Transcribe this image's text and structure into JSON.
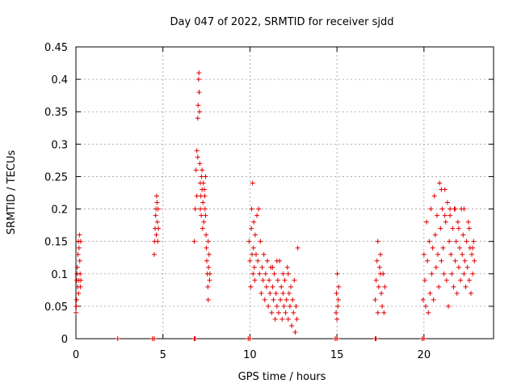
{
  "chart_data": {
    "type": "scatter",
    "title": "Day 047 of 2022, SRMTID for receiver sjdd",
    "xlabel": "GPS time / hours",
    "ylabel": "SRMTID / TECUs",
    "xlim": [
      0,
      24
    ],
    "ylim": [
      0,
      0.45
    ],
    "xticks": [
      0,
      5,
      10,
      15,
      20
    ],
    "xtick_labels": [
      "0",
      "5",
      "10",
      "15",
      "20"
    ],
    "yticks": [
      0,
      0.05,
      0.1,
      0.15,
      0.2,
      0.25,
      0.3,
      0.35,
      0.4,
      0.45
    ],
    "ytick_labels": [
      "0",
      "0.05",
      "0.1",
      "0.15",
      "0.2",
      "0.25",
      "0.3",
      "0.35",
      "0.4",
      "0.45"
    ],
    "grid": true,
    "marker": "+",
    "color": "#e00000",
    "series": [
      {
        "name": "SRMTID",
        "points": [
          [
            0.0,
            0.04
          ],
          [
            0.02,
            0.05
          ],
          [
            0.04,
            0.06
          ],
          [
            0.05,
            0.09
          ],
          [
            0.06,
            0.1
          ],
          [
            0.08,
            0.11
          ],
          [
            0.1,
            0.08
          ],
          [
            0.12,
            0.13
          ],
          [
            0.14,
            0.15
          ],
          [
            0.15,
            0.07
          ],
          [
            0.17,
            0.09
          ],
          [
            0.18,
            0.14
          ],
          [
            0.2,
            0.16
          ],
          [
            0.22,
            0.12
          ],
          [
            0.24,
            0.1
          ],
          [
            0.25,
            0.08
          ],
          [
            0.27,
            0.15
          ],
          [
            0.28,
            0.09
          ],
          [
            2.4,
            0.0
          ],
          [
            4.4,
            0.0
          ],
          [
            4.5,
            0.0
          ],
          [
            4.5,
            0.13
          ],
          [
            4.52,
            0.15
          ],
          [
            4.55,
            0.17
          ],
          [
            4.58,
            0.19
          ],
          [
            4.6,
            0.2
          ],
          [
            4.62,
            0.16
          ],
          [
            4.64,
            0.22
          ],
          [
            4.66,
            0.21
          ],
          [
            4.68,
            0.18
          ],
          [
            4.7,
            0.15
          ],
          [
            4.72,
            0.2
          ],
          [
            4.74,
            0.17
          ],
          [
            6.8,
            0.0
          ],
          [
            6.85,
            0.0
          ],
          [
            6.8,
            0.15
          ],
          [
            6.85,
            0.2
          ],
          [
            6.9,
            0.26
          ],
          [
            6.95,
            0.29
          ],
          [
            7.0,
            0.34
          ],
          [
            7.02,
            0.36
          ],
          [
            7.05,
            0.4
          ],
          [
            7.07,
            0.41
          ],
          [
            7.08,
            0.38
          ],
          [
            7.1,
            0.35
          ],
          [
            7.12,
            0.27
          ],
          [
            7.15,
            0.24
          ],
          [
            7.18,
            0.22
          ],
          [
            7.2,
            0.19
          ],
          [
            7.22,
            0.25
          ],
          [
            7.25,
            0.23
          ],
          [
            7.28,
            0.17
          ],
          [
            7.3,
            0.21
          ],
          [
            7.32,
            0.24
          ],
          [
            7.35,
            0.18
          ],
          [
            7.38,
            0.23
          ],
          [
            7.4,
            0.22
          ],
          [
            7.42,
            0.2
          ],
          [
            7.45,
            0.25
          ],
          [
            7.48,
            0.16
          ],
          [
            7.5,
            0.14
          ],
          [
            7.52,
            0.12
          ],
          [
            7.55,
            0.1
          ],
          [
            7.58,
            0.08
          ],
          [
            7.6,
            0.06
          ],
          [
            7.62,
            0.11
          ],
          [
            7.65,
            0.13
          ],
          [
            7.68,
            0.09
          ],
          [
            7.7,
            0.1
          ],
          [
            6.95,
            0.22
          ],
          [
            7.0,
            0.28
          ],
          [
            7.15,
            0.2
          ],
          [
            7.25,
            0.26
          ],
          [
            7.45,
            0.19
          ],
          [
            7.6,
            0.15
          ],
          [
            9.9,
            0.0
          ],
          [
            10.0,
            0.0
          ],
          [
            9.95,
            0.15
          ],
          [
            10.0,
            0.12
          ],
          [
            10.05,
            0.08
          ],
          [
            10.08,
            0.17
          ],
          [
            10.1,
            0.2
          ],
          [
            10.12,
            0.13
          ],
          [
            10.15,
            0.24
          ],
          [
            10.18,
            0.1
          ],
          [
            10.2,
            0.14
          ],
          [
            10.22,
            0.18
          ],
          [
            10.25,
            0.11
          ],
          [
            10.28,
            0.09
          ],
          [
            10.3,
            0.16
          ],
          [
            10.35,
            0.13
          ],
          [
            10.4,
            0.19
          ],
          [
            10.45,
            0.12
          ],
          [
            10.5,
            0.2
          ],
          [
            10.55,
            0.1
          ],
          [
            10.6,
            0.15
          ],
          [
            10.65,
            0.07
          ],
          [
            10.7,
            0.11
          ],
          [
            10.75,
            0.09
          ],
          [
            10.8,
            0.13
          ],
          [
            10.85,
            0.06
          ],
          [
            10.9,
            0.1
          ],
          [
            10.95,
            0.08
          ],
          [
            11.0,
            0.12
          ],
          [
            11.05,
            0.05
          ],
          [
            11.1,
            0.09
          ],
          [
            11.15,
            0.07
          ],
          [
            11.2,
            0.11
          ],
          [
            11.25,
            0.04
          ],
          [
            11.3,
            0.08
          ],
          [
            11.35,
            0.06
          ],
          [
            11.4,
            0.1
          ],
          [
            11.45,
            0.03
          ],
          [
            11.5,
            0.07
          ],
          [
            11.55,
            0.05
          ],
          [
            11.6,
            0.09
          ],
          [
            11.65,
            0.04
          ],
          [
            11.7,
            0.12
          ],
          [
            11.75,
            0.06
          ],
          [
            11.8,
            0.08
          ],
          [
            11.85,
            0.03
          ],
          [
            11.9,
            0.07
          ],
          [
            11.95,
            0.05
          ],
          [
            12.0,
            0.09
          ],
          [
            12.05,
            0.04
          ],
          [
            12.1,
            0.06
          ],
          [
            12.15,
            0.11
          ],
          [
            12.2,
            0.03
          ],
          [
            12.25,
            0.07
          ],
          [
            12.3,
            0.05
          ],
          [
            12.35,
            0.08
          ],
          [
            12.4,
            0.02
          ],
          [
            12.45,
            0.06
          ],
          [
            12.5,
            0.04
          ],
          [
            12.55,
            0.09
          ],
          [
            12.6,
            0.01
          ],
          [
            12.65,
            0.05
          ],
          [
            12.7,
            0.03
          ],
          [
            12.75,
            0.14
          ],
          [
            11.55,
            0.12
          ],
          [
            11.3,
            0.11
          ],
          [
            11.9,
            0.1
          ],
          [
            12.2,
            0.1
          ],
          [
            14.9,
            0.0
          ],
          [
            15.0,
            0.0
          ],
          [
            14.95,
            0.04
          ],
          [
            14.97,
            0.07
          ],
          [
            15.0,
            0.03
          ],
          [
            15.02,
            0.1
          ],
          [
            15.05,
            0.05
          ],
          [
            15.08,
            0.06
          ],
          [
            15.1,
            0.08
          ],
          [
            17.2,
            0.0
          ],
          [
            17.25,
            0.0
          ],
          [
            17.2,
            0.06
          ],
          [
            17.25,
            0.09
          ],
          [
            17.3,
            0.12
          ],
          [
            17.35,
            0.15
          ],
          [
            17.4,
            0.08
          ],
          [
            17.45,
            0.11
          ],
          [
            17.5,
            0.1
          ],
          [
            17.55,
            0.07
          ],
          [
            17.6,
            0.05
          ],
          [
            17.65,
            0.1
          ],
          [
            17.7,
            0.04
          ],
          [
            17.75,
            0.08
          ],
          [
            17.5,
            0.13
          ],
          [
            17.35,
            0.04
          ],
          [
            19.9,
            0.0
          ],
          [
            20.0,
            0.0
          ],
          [
            19.95,
            0.06
          ],
          [
            20.0,
            0.13
          ],
          [
            20.05,
            0.09
          ],
          [
            20.1,
            0.05
          ],
          [
            20.15,
            0.18
          ],
          [
            20.2,
            0.12
          ],
          [
            20.25,
            0.04
          ],
          [
            20.3,
            0.15
          ],
          [
            20.35,
            0.07
          ],
          [
            20.4,
            0.2
          ],
          [
            20.45,
            0.1
          ],
          [
            20.5,
            0.14
          ],
          [
            20.55,
            0.06
          ],
          [
            20.6,
            0.22
          ],
          [
            20.65,
            0.16
          ],
          [
            20.7,
            0.11
          ],
          [
            20.75,
            0.19
          ],
          [
            20.8,
            0.13
          ],
          [
            20.85,
            0.08
          ],
          [
            20.9,
            0.24
          ],
          [
            20.95,
            0.17
          ],
          [
            21.0,
            0.12
          ],
          [
            21.05,
            0.2
          ],
          [
            21.1,
            0.14
          ],
          [
            21.15,
            0.1
          ],
          [
            21.2,
            0.23
          ],
          [
            21.25,
            0.18
          ],
          [
            21.3,
            0.09
          ],
          [
            21.35,
            0.21
          ],
          [
            21.4,
            0.05
          ],
          [
            21.45,
            0.15
          ],
          [
            21.5,
            0.19
          ],
          [
            21.55,
            0.13
          ],
          [
            21.6,
            0.1
          ],
          [
            21.65,
            0.17
          ],
          [
            21.7,
            0.08
          ],
          [
            21.75,
            0.2
          ],
          [
            21.8,
            0.12
          ],
          [
            21.85,
            0.15
          ],
          [
            21.9,
            0.07
          ],
          [
            21.95,
            0.18
          ],
          [
            22.0,
            0.11
          ],
          [
            22.05,
            0.14
          ],
          [
            22.1,
            0.09
          ],
          [
            22.15,
            0.2
          ],
          [
            22.2,
            0.13
          ],
          [
            22.25,
            0.16
          ],
          [
            22.3,
            0.1
          ],
          [
            22.35,
            0.12
          ],
          [
            22.4,
            0.08
          ],
          [
            22.45,
            0.15
          ],
          [
            22.5,
            0.11
          ],
          [
            22.55,
            0.18
          ],
          [
            22.6,
            0.09
          ],
          [
            22.65,
            0.14
          ],
          [
            22.7,
            0.07
          ],
          [
            22.75,
            0.13
          ],
          [
            22.8,
            0.1
          ],
          [
            22.85,
            0.15
          ],
          [
            22.9,
            0.12
          ],
          [
            21.0,
            0.23
          ],
          [
            21.2,
            0.19
          ],
          [
            21.5,
            0.2
          ],
          [
            21.8,
            0.2
          ],
          [
            22.0,
            0.17
          ],
          [
            22.3,
            0.2
          ],
          [
            22.6,
            0.17
          ],
          [
            22.8,
            0.14
          ]
        ]
      }
    ]
  }
}
